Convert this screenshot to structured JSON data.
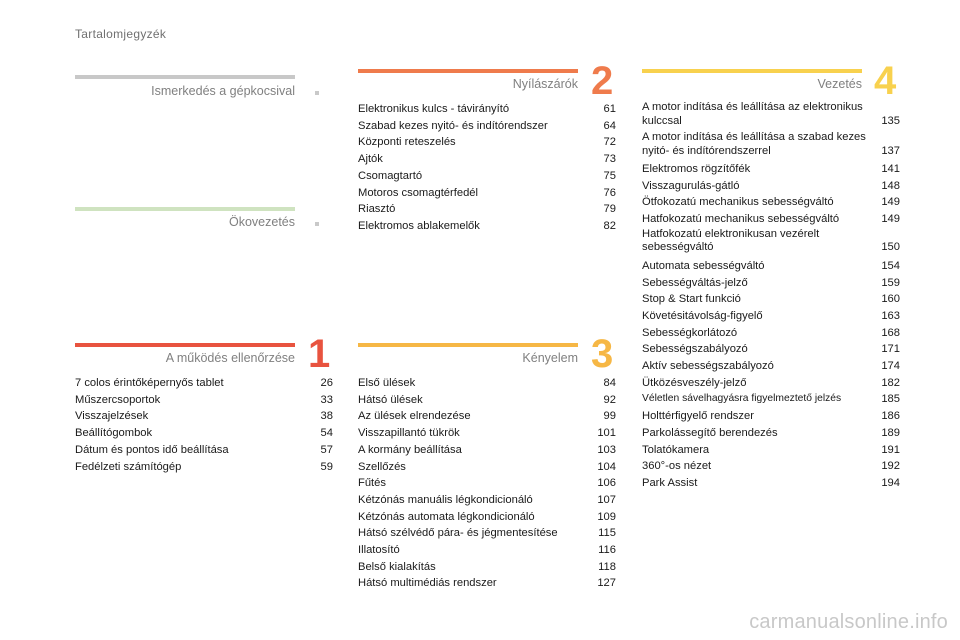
{
  "page_title": "Tartalomjegyzék",
  "sections": {
    "s0": {
      "title": "Ismerkedés a gépkocsival",
      "color": "#c8c8c8"
    },
    "eco": {
      "title": "Ökovezetés",
      "color": "#cfe3c0"
    },
    "s1": {
      "title": "A működés ellenőrzése",
      "number": "1",
      "color": "#e8533f",
      "items": [
        {
          "t": "7 colos érintőképernyős tablet",
          "p": "26"
        },
        {
          "t": "Műszercsoportok",
          "p": "33"
        },
        {
          "t": "Visszajelzések",
          "p": "38"
        },
        {
          "t": "Beállítógombok",
          "p": "54"
        },
        {
          "t": "Dátum és pontos idő beállítása",
          "p": "57"
        },
        {
          "t": "Fedélzeti számítógép",
          "p": "59"
        }
      ]
    },
    "s2": {
      "title": "Nyílászárók",
      "number": "2",
      "color": "#ef7b4c",
      "items": [
        {
          "t": "Elektronikus kulcs - távirányító",
          "p": "61"
        },
        {
          "t": "Szabad kezes nyitó- és indítórendszer",
          "p": "64"
        },
        {
          "t": "Központi reteszelés",
          "p": "72"
        },
        {
          "t": "Ajtók",
          "p": "73"
        },
        {
          "t": "Csomagtartó",
          "p": "75"
        },
        {
          "t": "Motoros csomagtérfedél",
          "p": "76"
        },
        {
          "t": "Riasztó",
          "p": "79"
        },
        {
          "t": "Elektromos ablakemelők",
          "p": "82"
        }
      ]
    },
    "s3": {
      "title": "Kényelem",
      "number": "3",
      "color": "#f6b745",
      "items": [
        {
          "t": "Első ülések",
          "p": "84"
        },
        {
          "t": "Hátsó ülések",
          "p": "92"
        },
        {
          "t": "Az ülések elrendezése",
          "p": "99"
        },
        {
          "t": "Visszapillantó tükrök",
          "p": "101"
        },
        {
          "t": "A kormány beállítása",
          "p": "103"
        },
        {
          "t": "Szellőzés",
          "p": "104"
        },
        {
          "t": "Fűtés",
          "p": "106"
        },
        {
          "t": "Kétzónás manuális légkondicionáló",
          "p": "107"
        },
        {
          "t": "Kétzónás automata légkondicionáló",
          "p": "109"
        },
        {
          "t": "Hátsó szélvédő pára- és jégmentesítése",
          "p": "115"
        },
        {
          "t": "Illatosító",
          "p": "116"
        },
        {
          "t": "Belső kialakítás",
          "p": "118"
        },
        {
          "t": "Hátsó multimédiás rendszer",
          "p": "127"
        }
      ]
    },
    "s4": {
      "title": "Vezetés",
      "number": "4",
      "color": "#f8d14e",
      "items": [
        {
          "t": "A motor indítása és leállítása az elektronikus kulccsal",
          "p": "135",
          "two": true
        },
        {
          "t": "A motor indítása és leállítása a szabad kezes nyitó- és indítórendszerrel",
          "p": "137",
          "two": true
        },
        {
          "t": "Elektromos rögzítőfék",
          "p": "141"
        },
        {
          "t": "Visszagurulás-gátló",
          "p": "148"
        },
        {
          "t": "Ötfokozatú mechanikus sebességváltó",
          "p": "149"
        },
        {
          "t": "Hatfokozatú mechanikus sebességváltó",
          "p": "149"
        },
        {
          "t": "Hatfokozatú elektronikusan vezérelt sebességváltó",
          "p": "150",
          "two": true
        },
        {
          "t": "Automata sebességváltó",
          "p": "154"
        },
        {
          "t": "Sebességváltás-jelző",
          "p": "159"
        },
        {
          "t": "Stop & Start funkció",
          "p": "160"
        },
        {
          "t": "Követésitávolság-figyelő",
          "p": "163"
        },
        {
          "t": "Sebességkorlátozó",
          "p": "168"
        },
        {
          "t": "Sebességszabályozó",
          "p": "171"
        },
        {
          "t": "Aktív sebességszabályozó",
          "p": "174"
        },
        {
          "t": "Ütközésveszély-jelző",
          "p": "182"
        },
        {
          "t": "Véletlen sávelhagyásra figyelmeztető jelzés",
          "p": "185",
          "small": true
        },
        {
          "t": "Holttérfigyelő rendszer",
          "p": "186"
        },
        {
          "t": "Parkolássegítő berendezés",
          "p": "189"
        },
        {
          "t": "Tolatókamera",
          "p": "191"
        },
        {
          "t": "360°-os nézet",
          "p": "192"
        },
        {
          "t": "Park Assist",
          "p": "194"
        }
      ]
    }
  },
  "watermark": "carmanualsonline.info"
}
